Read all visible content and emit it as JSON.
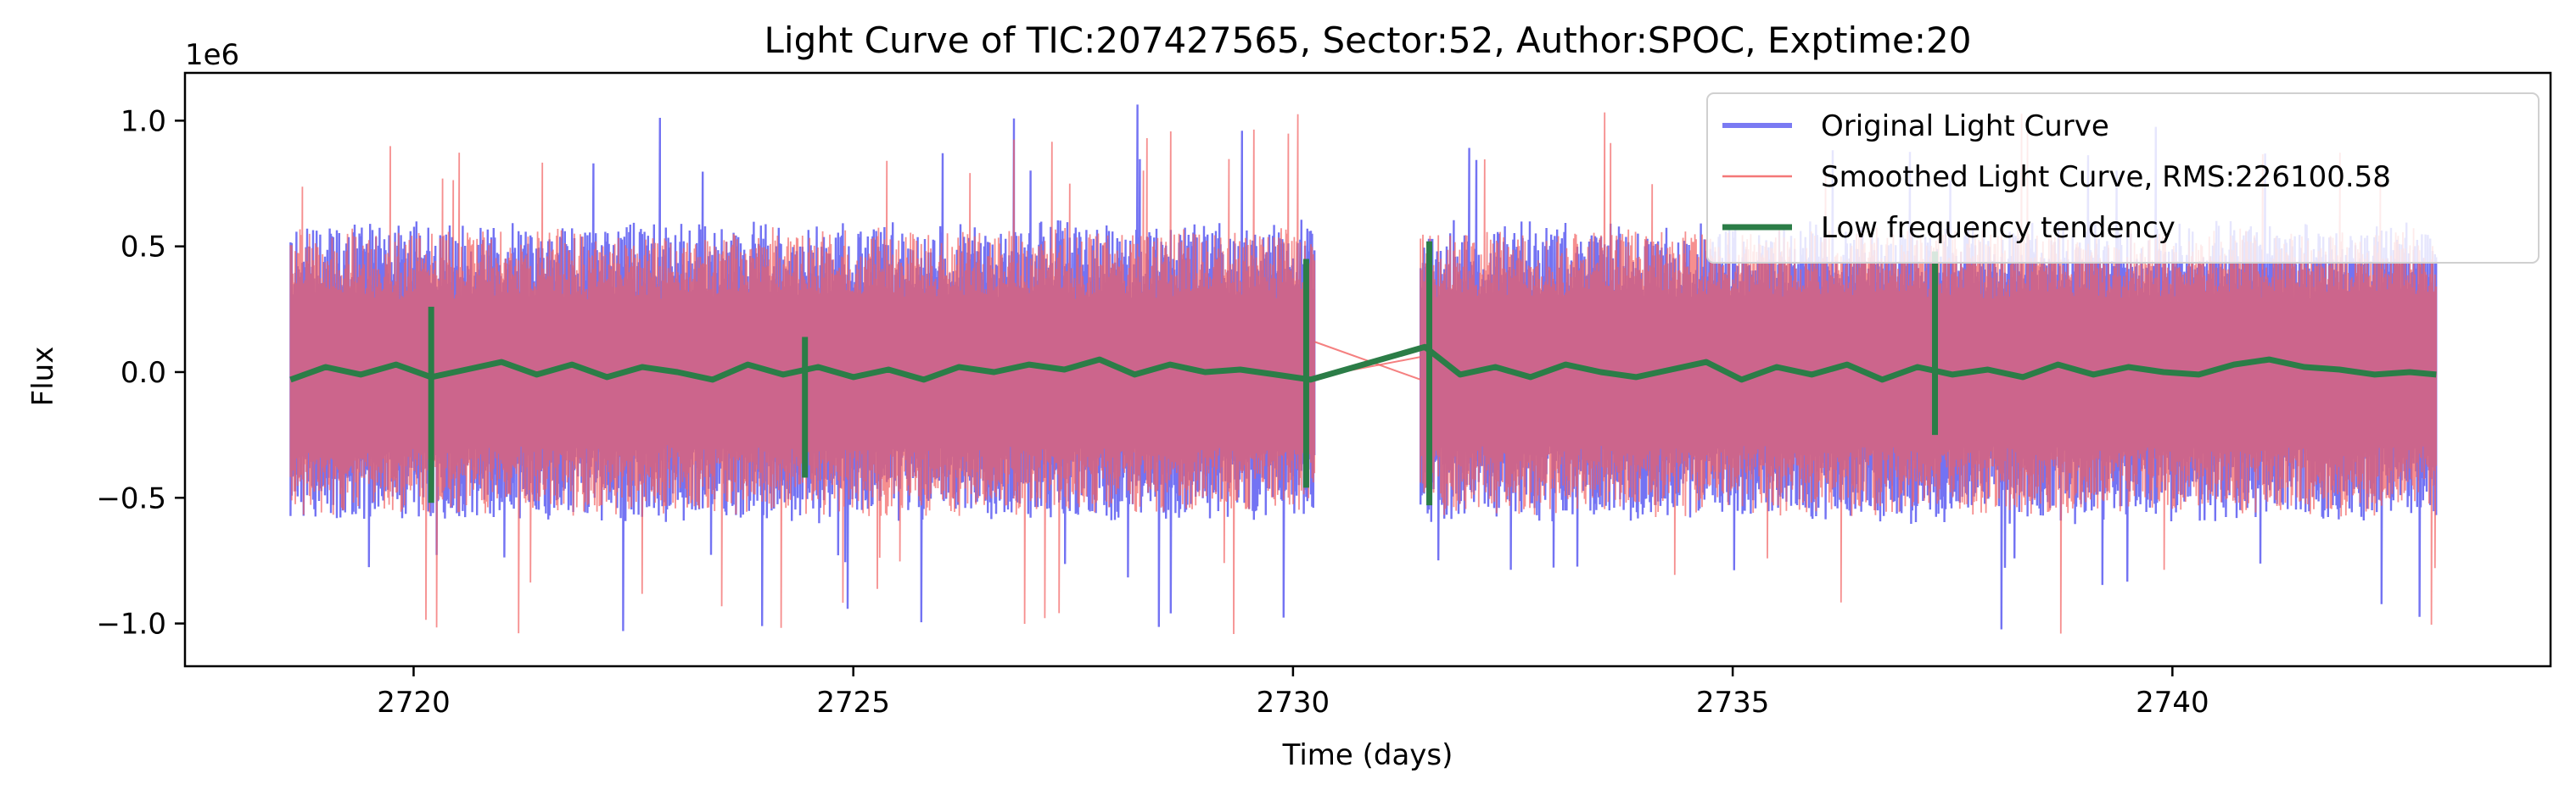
{
  "chart_data": {
    "type": "line",
    "title": "Light Curve of TIC:207427565, Sector:52, Author:SPOC, Exptime:20",
    "xlabel": "Time (days)",
    "ylabel": "Flux",
    "y_multiplier_label": "1e6",
    "y_scale": 1000000,
    "xlim": [
      2717.4,
      2744.3
    ],
    "ylim": [
      -1170000,
      1190000
    ],
    "x_ticks": [
      2720,
      2725,
      2730,
      2735,
      2740
    ],
    "y_ticks": [
      {
        "value": -1000000,
        "label": "−1.0"
      },
      {
        "value": -500000,
        "label": "−0.5"
      },
      {
        "value": 0,
        "label": "0.0"
      },
      {
        "value": 500000,
        "label": "0.5"
      },
      {
        "value": 1000000,
        "label": "1.0"
      }
    ],
    "grid": false,
    "legend_position": "top-right",
    "segments": [
      [
        2718.6,
        2730.25
      ],
      [
        2731.45,
        2743.0
      ]
    ],
    "series": [
      {
        "name": "Original Light Curve",
        "color": "#6b6bf2",
        "typical_range": [
          -580000,
          580000
        ],
        "max": 1070000,
        "min": -1050000
      },
      {
        "name": "Smoothed Light Curve, RMS:226100.58",
        "color": "#f26060",
        "typical_range": [
          -560000,
          560000
        ],
        "max": 1060000,
        "min": -1040000
      },
      {
        "name": "Low frequency tendency",
        "color": "#2b7d47",
        "x": [
          2718.6,
          2719.0,
          2719.4,
          2719.8,
          2720.2,
          2720.6,
          2721.0,
          2721.4,
          2721.8,
          2722.2,
          2722.6,
          2723.0,
          2723.4,
          2723.8,
          2724.2,
          2724.6,
          2725.0,
          2725.4,
          2725.8,
          2726.2,
          2726.6,
          2727.0,
          2727.4,
          2727.8,
          2728.2,
          2728.6,
          2729.0,
          2729.4,
          2729.8,
          2730.2,
          2731.5,
          2731.9,
          2732.3,
          2732.7,
          2733.1,
          2733.5,
          2733.9,
          2734.3,
          2734.7,
          2735.1,
          2735.5,
          2735.9,
          2736.3,
          2736.7,
          2737.1,
          2737.5,
          2737.9,
          2738.3,
          2738.7,
          2739.1,
          2739.5,
          2739.9,
          2740.3,
          2740.7,
          2741.1,
          2741.5,
          2741.9,
          2742.3,
          2742.7,
          2743.0
        ],
        "y": [
          -30000,
          20000,
          -10000,
          30000,
          -20000,
          10000,
          40000,
          -10000,
          30000,
          -20000,
          20000,
          0,
          -30000,
          30000,
          -10000,
          20000,
          -20000,
          10000,
          -30000,
          20000,
          0,
          30000,
          10000,
          50000,
          -10000,
          30000,
          0,
          10000,
          -10000,
          -30000,
          100000,
          -10000,
          20000,
          -20000,
          30000,
          0,
          -20000,
          10000,
          40000,
          -30000,
          20000,
          -10000,
          30000,
          -30000,
          20000,
          -10000,
          10000,
          -20000,
          30000,
          -10000,
          20000,
          0,
          -10000,
          30000,
          50000,
          20000,
          10000,
          -10000,
          0,
          -10000
        ],
        "spikes": [
          {
            "x": 2720.2,
            "min": -520000,
            "max": 260000
          },
          {
            "x": 2724.45,
            "min": -420000,
            "max": 140000
          },
          {
            "x": 2730.15,
            "min": -460000,
            "max": 450000
          },
          {
            "x": 2731.55,
            "min": -530000,
            "max": 520000
          },
          {
            "x": 2737.3,
            "min": -250000,
            "max": 480000
          }
        ]
      }
    ]
  }
}
